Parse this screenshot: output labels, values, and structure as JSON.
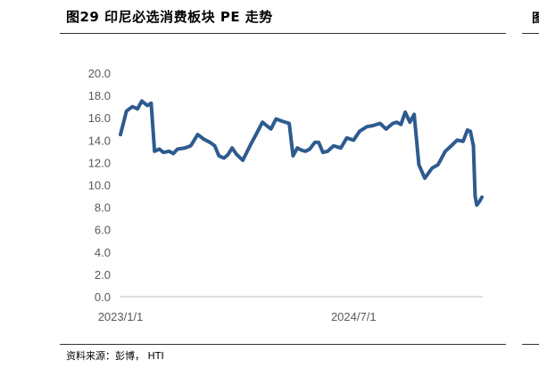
{
  "title": "图29 印尼必选消费板块 PE 走势",
  "source": "资料来源：彭博， HTI",
  "right_edge_glyph": "图",
  "colors": {
    "line": "#2e5b8f",
    "axis": "#bfbfbf",
    "text": "#595959"
  },
  "chart_data": {
    "type": "line",
    "title": "",
    "xlabel": "",
    "ylabel": "",
    "ylim": [
      0,
      20
    ],
    "yticks": [
      "0.0",
      "2.0",
      "4.0",
      "6.0",
      "8.0",
      "10.0",
      "12.0",
      "14.0",
      "16.0",
      "18.0",
      "20.0"
    ],
    "xticks": [
      {
        "label": "2023/1/1",
        "date": "2023-01-01"
      },
      {
        "label": "2024/7/1",
        "date": "2024-07-01"
      }
    ],
    "x_range": [
      "2023-01-01",
      "2025-04-30"
    ],
    "grid": false,
    "legend": "none",
    "series": [
      {
        "x": [
          "2023-01-01",
          "2023-01-15",
          "2023-01-29",
          "2023-02-10",
          "2023-02-20",
          "2023-03-05",
          "2023-03-14",
          "2023-03-22",
          "2023-04-02",
          "2023-04-12",
          "2023-04-25",
          "2023-05-05",
          "2023-05-15",
          "2023-06-01",
          "2023-06-15",
          "2023-07-01",
          "2023-07-15",
          "2023-07-30",
          "2023-08-10",
          "2023-08-20",
          "2023-09-01",
          "2023-09-10",
          "2023-09-20",
          "2023-10-01",
          "2023-10-15",
          "2023-11-01",
          "2023-11-15",
          "2023-11-30",
          "2023-12-10",
          "2023-12-20",
          "2024-01-01",
          "2024-01-15",
          "2024-02-01",
          "2024-02-10",
          "2024-02-20",
          "2024-03-01",
          "2024-03-10",
          "2024-03-20",
          "2024-04-01",
          "2024-04-10",
          "2024-04-20",
          "2024-05-01",
          "2024-05-15",
          "2024-06-01",
          "2024-06-15",
          "2024-07-01",
          "2024-07-15",
          "2024-08-01",
          "2024-08-15",
          "2024-09-01",
          "2024-09-15",
          "2024-10-01",
          "2024-10-10",
          "2024-10-20",
          "2024-10-30",
          "2024-11-10",
          "2024-11-20",
          "2024-12-01",
          "2024-12-15",
          "2025-01-01",
          "2025-01-15",
          "2025-02-01",
          "2025-02-15",
          "2025-03-01",
          "2025-03-15",
          "2025-03-25",
          "2025-04-01",
          "2025-04-08",
          "2025-04-12",
          "2025-04-16",
          "2025-04-22",
          "2025-04-28"
        ],
        "values": [
          14.5,
          16.6,
          17.0,
          16.8,
          17.5,
          17.1,
          17.3,
          13.0,
          13.2,
          12.9,
          13.0,
          12.8,
          13.2,
          13.3,
          13.5,
          14.5,
          14.1,
          13.8,
          13.5,
          12.6,
          12.4,
          12.7,
          13.3,
          12.7,
          12.2,
          13.5,
          14.5,
          15.6,
          15.3,
          15.0,
          15.9,
          15.7,
          15.5,
          12.6,
          13.3,
          13.1,
          13.0,
          13.2,
          13.8,
          13.8,
          12.9,
          13.0,
          13.5,
          13.3,
          14.2,
          14.0,
          14.8,
          15.2,
          15.3,
          15.5,
          15.0,
          15.5,
          15.6,
          15.4,
          16.5,
          15.6,
          16.3,
          11.8,
          10.6,
          11.5,
          11.8,
          13.0,
          13.5,
          14.0,
          13.9,
          14.9,
          14.8,
          13.5,
          9.0,
          8.2,
          8.5,
          8.9
        ]
      }
    ]
  }
}
